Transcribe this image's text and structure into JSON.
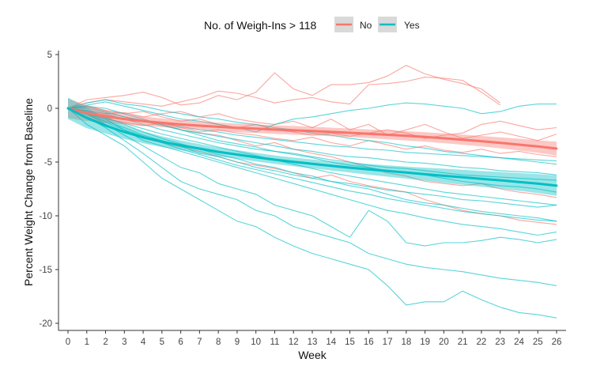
{
  "chart_data": {
    "type": "line",
    "xlabel": "Week",
    "ylabel": "Percent Weight Change from Baseline",
    "xlim": [
      0,
      26
    ],
    "ylim": [
      -20.5,
      5.5
    ],
    "x_ticks": [
      0,
      1,
      2,
      3,
      4,
      5,
      6,
      7,
      8,
      9,
      10,
      11,
      12,
      13,
      14,
      15,
      16,
      17,
      18,
      19,
      20,
      21,
      22,
      23,
      24,
      25,
      26
    ],
    "y_ticks": [
      5,
      0,
      -5,
      -10,
      -15,
      -20
    ],
    "grid": false,
    "legend": {
      "title": "No. of Weigh-Ins > 118",
      "placement": "top",
      "entries": [
        "No",
        "Yes"
      ]
    },
    "colors": {
      "No": "#f8766d",
      "Yes": "#00bfc4"
    },
    "x": [
      0,
      1,
      2,
      3,
      4,
      5,
      6,
      7,
      8,
      9,
      10,
      11,
      12,
      13,
      14,
      15,
      16,
      17,
      18,
      19,
      20,
      21,
      22,
      23,
      24,
      25,
      26
    ],
    "series": [
      {
        "name": "No",
        "smooth": [
          0,
          -0.45,
          -0.75,
          -1.0,
          -1.2,
          -1.35,
          -1.5,
          -1.62,
          -1.72,
          -1.82,
          -1.9,
          -1.98,
          -2.05,
          -2.12,
          -2.2,
          -2.28,
          -2.37,
          -2.46,
          -2.56,
          -2.67,
          -2.79,
          -2.92,
          -3.06,
          -3.21,
          -3.38,
          -3.55,
          -3.75
        ],
        "ci_upper": [
          0.9,
          0.3,
          -0.15,
          -0.5,
          -0.75,
          -0.95,
          -1.1,
          -1.23,
          -1.33,
          -1.42,
          -1.5,
          -1.58,
          -1.65,
          -1.72,
          -1.8,
          -1.88,
          -1.96,
          -2.04,
          -2.13,
          -2.23,
          -2.34,
          -2.45,
          -2.57,
          -2.7,
          -2.83,
          -2.97,
          -3.1
        ],
        "ci_lower": [
          -0.9,
          -1.2,
          -1.35,
          -1.5,
          -1.65,
          -1.75,
          -1.9,
          -2.01,
          -2.11,
          -2.22,
          -2.3,
          -2.38,
          -2.45,
          -2.52,
          -2.6,
          -2.68,
          -2.78,
          -2.88,
          -2.99,
          -3.11,
          -3.24,
          -3.39,
          -3.55,
          -3.72,
          -3.93,
          -4.13,
          -4.4
        ],
        "individual": [
          [
            0,
            0.8,
            1.0,
            1.2,
            1.5,
            1.0,
            0.3,
            0.5,
            1.2,
            0.8,
            1.5,
            3.3,
            1.8,
            1.2,
            2.2,
            2.2,
            2.4,
            3.0,
            4.0,
            3.2,
            2.7,
            2.3,
            1.8,
            0.5,
            null,
            null,
            null
          ],
          [
            0,
            0.5,
            0.8,
            0.6,
            0.4,
            0.2,
            0.6,
            1.0,
            1.6,
            1.4,
            1.0,
            0.5,
            0.8,
            1.0,
            0.6,
            0.4,
            2.2,
            2.3,
            2.5,
            2.9,
            2.8,
            2.6,
            1.5,
            0.3,
            null,
            null,
            null
          ],
          [
            0,
            -0.2,
            -0.5,
            -0.4,
            -0.8,
            -0.5,
            -0.3,
            -0.8,
            -0.5,
            -1.0,
            -1.3,
            -1.5,
            -1.2,
            -1.8,
            -1.0,
            -2.0,
            -1.5,
            -2.5,
            -2.0,
            -1.5,
            -2.2,
            -2.8,
            -2.5,
            -2.2,
            -2.6,
            -3.0,
            -2.4
          ],
          [
            0,
            -0.5,
            -1.0,
            -1.3,
            -1.6,
            -1.4,
            -1.8,
            -2.2,
            -2.0,
            -2.3,
            -2.5,
            -2.8,
            -3.0,
            -2.7,
            -3.2,
            -3.5,
            -3.0,
            -3.4,
            -3.8,
            -3.5,
            -3.9,
            -4.1,
            -3.8,
            -4.2,
            -4.0,
            -4.3,
            -4.5
          ],
          [
            0,
            -0.8,
            -1.5,
            -2.2,
            -2.8,
            -3.2,
            -3.6,
            -4.0,
            -4.5,
            -5.0,
            -5.3,
            -5.6,
            -6.0,
            -6.5,
            -6.2,
            -6.8,
            -7.2,
            -7.5,
            -7.8,
            -8.5,
            -9.0,
            -9.5,
            -9.8,
            -10.0,
            -10.4,
            -10.6,
            -10.8
          ],
          [
            0,
            -0.3,
            -0.6,
            -1.0,
            -1.2,
            -1.5,
            -2.0,
            -2.3,
            -2.5,
            -3.0,
            -3.5,
            -3.2,
            -3.8,
            -4.2,
            -4.5,
            -5.0,
            -5.5,
            -6.0,
            -6.3,
            -6.8,
            -7.0,
            -7.2,
            -7.0,
            -7.5,
            -7.8,
            -8.0,
            -8.3
          ],
          [
            0,
            0.2,
            -0.2,
            -0.5,
            -0.3,
            -0.8,
            -1.2,
            -1.0,
            -1.5,
            -1.8,
            -1.5,
            -2.0,
            -2.2,
            -2.5,
            -2.3,
            -2.6,
            -2.3,
            -2.0,
            -2.3,
            -2.8,
            -2.5,
            -2.3,
            -1.5,
            -1.2,
            -1.6,
            -2.0,
            -1.8
          ]
        ]
      },
      {
        "name": "Yes",
        "smooth": [
          0,
          -0.9,
          -1.6,
          -2.2,
          -2.7,
          -3.1,
          -3.45,
          -3.75,
          -4.05,
          -4.3,
          -4.55,
          -4.78,
          -4.98,
          -5.17,
          -5.35,
          -5.52,
          -5.68,
          -5.83,
          -5.98,
          -6.13,
          -6.28,
          -6.42,
          -6.56,
          -6.7,
          -6.85,
          -7.0,
          -7.2
        ],
        "ci_upper": [
          1.0,
          0.05,
          -0.85,
          -1.55,
          -2.15,
          -2.6,
          -3.0,
          -3.33,
          -3.64,
          -3.9,
          -4.15,
          -4.38,
          -4.58,
          -4.76,
          -4.92,
          -5.06,
          -5.18,
          -5.3,
          -5.42,
          -5.52,
          -5.62,
          -5.72,
          -5.82,
          -5.92,
          -6.02,
          -6.12,
          -6.25
        ],
        "ci_lower": [
          -1.0,
          -1.85,
          -2.35,
          -2.85,
          -3.25,
          -3.6,
          -3.9,
          -4.17,
          -4.46,
          -4.7,
          -4.95,
          -5.18,
          -5.38,
          -5.58,
          -5.78,
          -5.98,
          -6.18,
          -6.36,
          -6.54,
          -6.74,
          -6.94,
          -7.12,
          -7.3,
          -7.48,
          -7.68,
          -7.88,
          -8.15
        ],
        "individual": [
          [
            0,
            -1.5,
            -2.5,
            -3.5,
            -5.0,
            -6.5,
            -7.5,
            -8.5,
            -9.5,
            -10.5,
            -11.0,
            -12.0,
            -12.8,
            -13.5,
            -14.0,
            -14.5,
            -15.0,
            -16.5,
            -18.3,
            -18.0,
            -18.0,
            -17.0,
            -17.8,
            -18.5,
            -19.0,
            -19.2,
            -19.5
          ],
          [
            0,
            -0.8,
            -1.8,
            -3.0,
            -4.2,
            -5.5,
            -6.8,
            -7.5,
            -8.0,
            -8.5,
            -9.5,
            -10.0,
            -11.0,
            -11.5,
            -12.0,
            -12.5,
            -13.5,
            -14.0,
            -14.5,
            -14.8,
            -15.0,
            -15.2,
            -15.5,
            -15.8,
            -16.0,
            -16.2,
            -16.5
          ],
          [
            0,
            -0.5,
            -1.5,
            -2.5,
            -3.5,
            -4.5,
            -5.5,
            -6.0,
            -7.0,
            -7.5,
            -8.0,
            -9.0,
            -9.5,
            -10.0,
            -11.0,
            -12.0,
            -9.5,
            -10.5,
            -12.5,
            -12.8,
            -12.5,
            -12.5,
            -12.3,
            -12.0,
            -12.2,
            -12.5,
            -12.2
          ],
          [
            0,
            -0.5,
            -1.0,
            -2.0,
            -3.0,
            -3.5,
            -4.0,
            -4.5,
            -5.0,
            -5.5,
            -6.0,
            -6.5,
            -7.0,
            -7.5,
            -8.0,
            -8.5,
            -9.0,
            -9.5,
            -9.8,
            -10.2,
            -10.5,
            -10.8,
            -11.0,
            -11.2,
            -11.5,
            -11.8,
            -11.5
          ],
          [
            0,
            -0.3,
            -0.8,
            -1.5,
            -2.2,
            -2.8,
            -3.3,
            -3.8,
            -4.3,
            -4.7,
            -5.2,
            -5.5,
            -6.0,
            -6.3,
            -6.8,
            -7.2,
            -7.5,
            -8.0,
            -8.5,
            -8.8,
            -9.0,
            -9.3,
            -9.6,
            -9.8,
            -10.0,
            -10.2,
            -10.5
          ],
          [
            0,
            -0.5,
            -1.2,
            -1.8,
            -2.5,
            -3.0,
            -3.5,
            -4.2,
            -4.5,
            -5.0,
            -5.5,
            -5.8,
            -6.2,
            -6.5,
            -6.8,
            -7.0,
            -7.3,
            -7.6,
            -7.8,
            -8.0,
            -8.2,
            -8.5,
            -8.6,
            -8.8,
            -9.0,
            -9.2,
            -9.0
          ],
          [
            0,
            0.2,
            0.0,
            -0.5,
            -1.0,
            -1.5,
            -2.0,
            -2.5,
            -3.0,
            -3.3,
            -3.6,
            -4.0,
            -4.3,
            -4.6,
            -5.0,
            -5.3,
            -5.5,
            -5.8,
            -6.0,
            -6.2,
            -6.5,
            -6.8,
            -7.0,
            -7.2,
            -7.3,
            -7.5,
            -7.8
          ],
          [
            0,
            0.5,
            0.8,
            0.4,
            0.2,
            -0.2,
            -0.5,
            -0.8,
            -1.0,
            -1.3,
            -1.5,
            -1.8,
            -2.0,
            -2.3,
            -2.5,
            -2.8,
            -3.0,
            -3.2,
            -3.5,
            -3.7,
            -4.0,
            -4.2,
            -4.4,
            -4.6,
            -4.8,
            -5.0,
            -5.2
          ],
          [
            0,
            0.3,
            0.6,
            0.2,
            -0.2,
            -0.6,
            -1.0,
            -1.2,
            -1.5,
            -1.8,
            -2.2,
            -1.5,
            -1.0,
            -0.8,
            -0.5,
            -0.2,
            0.0,
            0.3,
            0.5,
            0.4,
            0.2,
            0.0,
            -0.5,
            -0.3,
            0.2,
            0.4,
            0.4
          ],
          [
            0,
            -0.2,
            -0.5,
            -1.0,
            -1.5,
            -2.0,
            -2.4,
            -2.8,
            -3.2,
            -3.5,
            -3.8,
            -4.0,
            -4.2,
            -4.5,
            -4.8,
            -5.0,
            -5.3,
            -5.5,
            -5.6,
            -5.8,
            -6.0,
            -6.2,
            -6.3,
            -6.4,
            -6.5,
            -6.6,
            -6.7
          ],
          [
            0,
            0.1,
            -0.3,
            -0.8,
            -1.2,
            -1.6,
            -2.0,
            -2.3,
            -2.6,
            -2.9,
            -3.2,
            -3.5,
            -3.8,
            -4.0,
            -4.3,
            -4.5,
            -4.6,
            -4.8,
            -5.0,
            -5.1,
            -5.3,
            -5.5,
            -5.6,
            -5.8,
            -5.9,
            -6.0,
            -6.2
          ],
          [
            0,
            -0.4,
            -0.9,
            -1.4,
            -1.9,
            -2.4,
            -2.8,
            -3.2,
            -3.6,
            -4.0,
            -4.4,
            -4.8,
            -5.2,
            -5.6,
            -6.0,
            -6.3,
            -6.6,
            -6.9,
            -7.2,
            -7.5,
            -7.8,
            -8.0,
            -8.2,
            -8.4,
            -8.6,
            -8.8,
            -9.0
          ],
          [
            0,
            -0.6,
            -1.3,
            -2.0,
            -2.6,
            -3.2,
            -3.8,
            -4.3,
            -4.8,
            -5.3,
            -5.7,
            -6.1,
            -6.5,
            -6.9,
            -7.3,
            -7.7,
            -8.0,
            -8.4,
            -8.7,
            -9.0,
            -9.3,
            -9.6,
            -9.8,
            -10.0,
            -10.2,
            -10.4,
            -10.5
          ],
          [
            0,
            0.0,
            -0.4,
            -0.8,
            -1.1,
            -1.4,
            -1.7,
            -2.0,
            -2.2,
            -2.5,
            -2.7,
            -2.9,
            -3.1,
            -3.3,
            -3.5,
            -3.6,
            -3.8,
            -3.9,
            -4.1,
            -4.2,
            -4.3,
            -4.4,
            -4.5,
            -4.6,
            -4.7,
            -4.8,
            -4.9
          ]
        ]
      }
    ]
  }
}
